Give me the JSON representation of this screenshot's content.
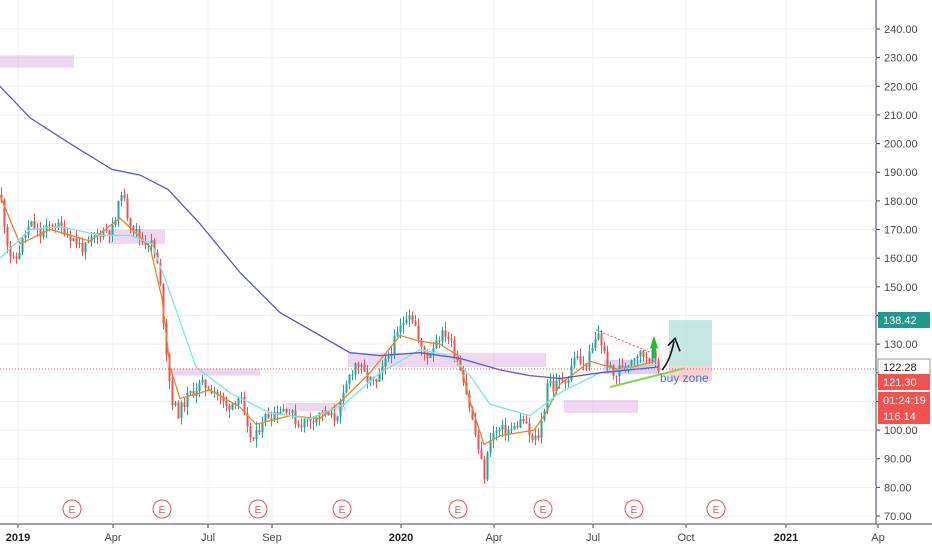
{
  "chart_data": {
    "type": "candlestick",
    "x_axis": {
      "labels": [
        "2019",
        "Apr",
        "Jul",
        "Sep",
        "2020",
        "Apr",
        "Jul",
        "Oct",
        "2021",
        "Ap"
      ],
      "bold_labels": [
        "2019",
        "2020",
        "2021"
      ]
    },
    "y_axis": {
      "ticks": [
        "70.00",
        "80.00",
        "90.00",
        "100.00",
        "110.00",
        "120.00",
        "130.00",
        "140.00",
        "150.00",
        "160.00",
        "170.00",
        "180.00",
        "190.00",
        "200.00",
        "210.00",
        "220.00",
        "230.00",
        "240.00"
      ],
      "range": [
        67,
        245
      ]
    },
    "grid": true,
    "price_path": [
      [
        0,
        182
      ],
      [
        8,
        163
      ],
      [
        14,
        158
      ],
      [
        22,
        166
      ],
      [
        30,
        172
      ],
      [
        40,
        168
      ],
      [
        52,
        172
      ],
      [
        64,
        170
      ],
      [
        72,
        167
      ],
      [
        84,
        163
      ],
      [
        96,
        168
      ],
      [
        104,
        170
      ],
      [
        112,
        170
      ],
      [
        117,
        176
      ],
      [
        121,
        184
      ],
      [
        126,
        176
      ],
      [
        134,
        170
      ],
      [
        142,
        166
      ],
      [
        150,
        166
      ],
      [
        156,
        160
      ],
      [
        160,
        150
      ],
      [
        164,
        135
      ],
      [
        168,
        120
      ],
      [
        172,
        110
      ],
      [
        178,
        106
      ],
      [
        188,
        112
      ],
      [
        200,
        116
      ],
      [
        214,
        114
      ],
      [
        226,
        108
      ],
      [
        240,
        112
      ],
      [
        246,
        100
      ],
      [
        254,
        96
      ],
      [
        262,
        104
      ],
      [
        272,
        106
      ],
      [
        286,
        108
      ],
      [
        298,
        102
      ],
      [
        310,
        104
      ],
      [
        322,
        106
      ],
      [
        334,
        104
      ],
      [
        342,
        110
      ],
      [
        348,
        118
      ],
      [
        356,
        124
      ],
      [
        366,
        118
      ],
      [
        376,
        116
      ],
      [
        388,
        126
      ],
      [
        398,
        134
      ],
      [
        408,
        142
      ],
      [
        414,
        138
      ],
      [
        420,
        128
      ],
      [
        428,
        126
      ],
      [
        436,
        132
      ],
      [
        446,
        134
      ],
      [
        456,
        126
      ],
      [
        462,
        120
      ],
      [
        468,
        110
      ],
      [
        474,
        100
      ],
      [
        480,
        90
      ],
      [
        484,
        84
      ],
      [
        490,
        98
      ],
      [
        500,
        100
      ],
      [
        512,
        100
      ],
      [
        522,
        104
      ],
      [
        532,
        96
      ],
      [
        538,
        98
      ],
      [
        544,
        108
      ],
      [
        548,
        120
      ],
      [
        552,
        114
      ],
      [
        560,
        118
      ],
      [
        568,
        118
      ],
      [
        574,
        126
      ],
      [
        584,
        122
      ],
      [
        592,
        128
      ],
      [
        598,
        134
      ],
      [
        606,
        124
      ],
      [
        614,
        118
      ],
      [
        620,
        122
      ],
      [
        628,
        124
      ],
      [
        636,
        127
      ],
      [
        644,
        126
      ],
      [
        652,
        126
      ],
      [
        658,
        122
      ]
    ],
    "series": [
      {
        "color": "#f0822f",
        "values": [
          [
            0,
            182
          ],
          [
            20,
            165
          ],
          [
            50,
            170
          ],
          [
            90,
            166
          ],
          [
            120,
            174
          ],
          [
            150,
            164
          ],
          [
            162,
            146
          ],
          [
            170,
            122
          ],
          [
            180,
            111
          ],
          [
            210,
            114
          ],
          [
            240,
            108
          ],
          [
            256,
            102
          ],
          [
            290,
            105
          ],
          [
            320,
            104
          ],
          [
            344,
            111
          ],
          [
            370,
            120
          ],
          [
            400,
            133
          ],
          [
            420,
            131
          ],
          [
            440,
            130
          ],
          [
            458,
            126
          ],
          [
            470,
            110
          ],
          [
            484,
            95
          ],
          [
            500,
            98
          ],
          [
            534,
            100
          ],
          [
            546,
            106
          ],
          [
            560,
            116
          ],
          [
            590,
            124
          ],
          [
            620,
            121
          ],
          [
            656,
            124
          ]
        ]
      },
      {
        "color": "#7ee6e6",
        "values": [
          [
            0,
            160
          ],
          [
            30,
            170
          ],
          [
            60,
            171
          ],
          [
            100,
            168
          ],
          [
            130,
            168
          ],
          [
            152,
            165
          ],
          [
            170,
            148
          ],
          [
            196,
            122
          ],
          [
            230,
            113
          ],
          [
            270,
            106
          ],
          [
            310,
            104
          ],
          [
            344,
            109
          ],
          [
            380,
            120
          ],
          [
            420,
            128
          ],
          [
            450,
            126
          ],
          [
            470,
            119
          ],
          [
            490,
            109
          ],
          [
            530,
            105
          ],
          [
            560,
            113
          ],
          [
            600,
            120
          ],
          [
            658,
            123
          ]
        ]
      },
      {
        "color": "#5b57d6",
        "values": [
          [
            0,
            220
          ],
          [
            30,
            209
          ],
          [
            70,
            200
          ],
          [
            112,
            191
          ],
          [
            140,
            189
          ],
          [
            168,
            184
          ],
          [
            200,
            172
          ],
          [
            240,
            155
          ],
          [
            280,
            141
          ],
          [
            320,
            133
          ],
          [
            350,
            127
          ],
          [
            380,
            126
          ],
          [
            420,
            127
          ],
          [
            460,
            125
          ],
          [
            500,
            121
          ],
          [
            530,
            119
          ],
          [
            560,
            118
          ],
          [
            600,
            120
          ],
          [
            658,
            122
          ]
        ]
      }
    ],
    "price_labels": [
      {
        "value": 138.42,
        "text": "138.42",
        "color": "#20998a"
      },
      {
        "value": 122.28,
        "text": "122.28",
        "color": "#ffffff"
      },
      {
        "value": 121.3,
        "text": "121.30",
        "color": "#ef5350"
      },
      {
        "value": 110.5,
        "text": "01:24:19",
        "color": "#ef5350"
      },
      {
        "value": 116.14,
        "text": "116.14",
        "color": "#ef5350"
      }
    ],
    "earnings_markers": [
      "E",
      "E",
      "E",
      "E",
      "E",
      "E",
      "E",
      "E"
    ],
    "annotation": "buy zone"
  }
}
